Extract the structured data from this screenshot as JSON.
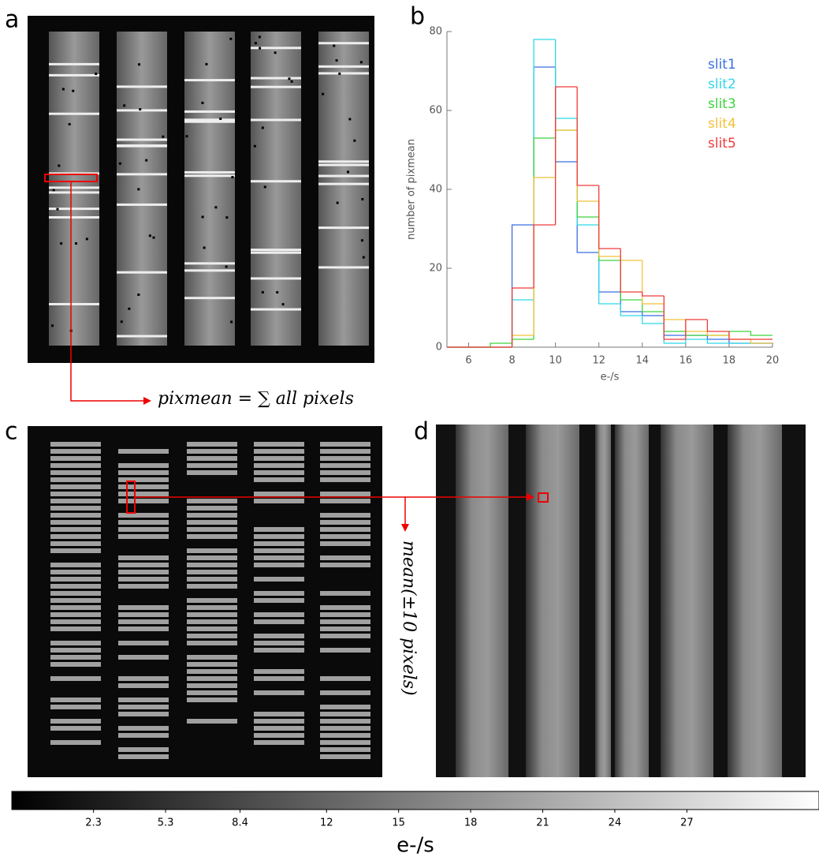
{
  "panels": {
    "a": "a",
    "b": "b",
    "c": "c",
    "d": "d"
  },
  "annotations": {
    "pixmean": "pixmean = ∑ all pixels",
    "mean": "mean(±10 pixels)"
  },
  "chart_data": {
    "type": "histogram",
    "xlabel": "e-/s",
    "ylabel": "number of pixmean",
    "bins": [
      5,
      6,
      7,
      8,
      9,
      10,
      11,
      12,
      13,
      14,
      15,
      16,
      17,
      18,
      19,
      20
    ],
    "xlim": [
      5,
      20
    ],
    "xticks": [
      6,
      8,
      10,
      12,
      14,
      16,
      18,
      20
    ],
    "ylim": [
      0,
      80
    ],
    "yticks": [
      0,
      20,
      40,
      60,
      80
    ],
    "series": [
      {
        "name": "slit1",
        "color": "#3a6fe0",
        "values": [
          0,
          0,
          0,
          31,
          71,
          47,
          24,
          14,
          9,
          8,
          3,
          3,
          2,
          1,
          1
        ]
      },
      {
        "name": "slit2",
        "color": "#2fd8e8",
        "values": [
          0,
          0,
          0,
          12,
          78,
          58,
          31,
          11,
          8,
          6,
          1,
          2,
          1,
          1,
          1
        ]
      },
      {
        "name": "slit3",
        "color": "#3ed33e",
        "values": [
          0,
          0,
          1,
          2,
          53,
          55,
          33,
          22,
          12,
          9,
          4,
          3,
          3,
          4,
          3
        ]
      },
      {
        "name": "slit4",
        "color": "#f2c23a",
        "values": [
          0,
          0,
          0,
          3,
          43,
          55,
          37,
          23,
          22,
          11,
          7,
          4,
          3,
          2,
          1
        ]
      },
      {
        "name": "slit5",
        "color": "#f03a3a",
        "values": [
          0,
          0,
          0,
          15,
          31,
          66,
          41,
          25,
          14,
          13,
          2,
          7,
          4,
          2,
          2
        ]
      }
    ]
  },
  "colorbar": {
    "label": "e-/s",
    "clim": [
      -1.1,
      32.5
    ],
    "ticks": [
      2.3,
      5.3,
      8.4,
      12,
      15,
      18,
      21,
      24,
      27
    ]
  }
}
